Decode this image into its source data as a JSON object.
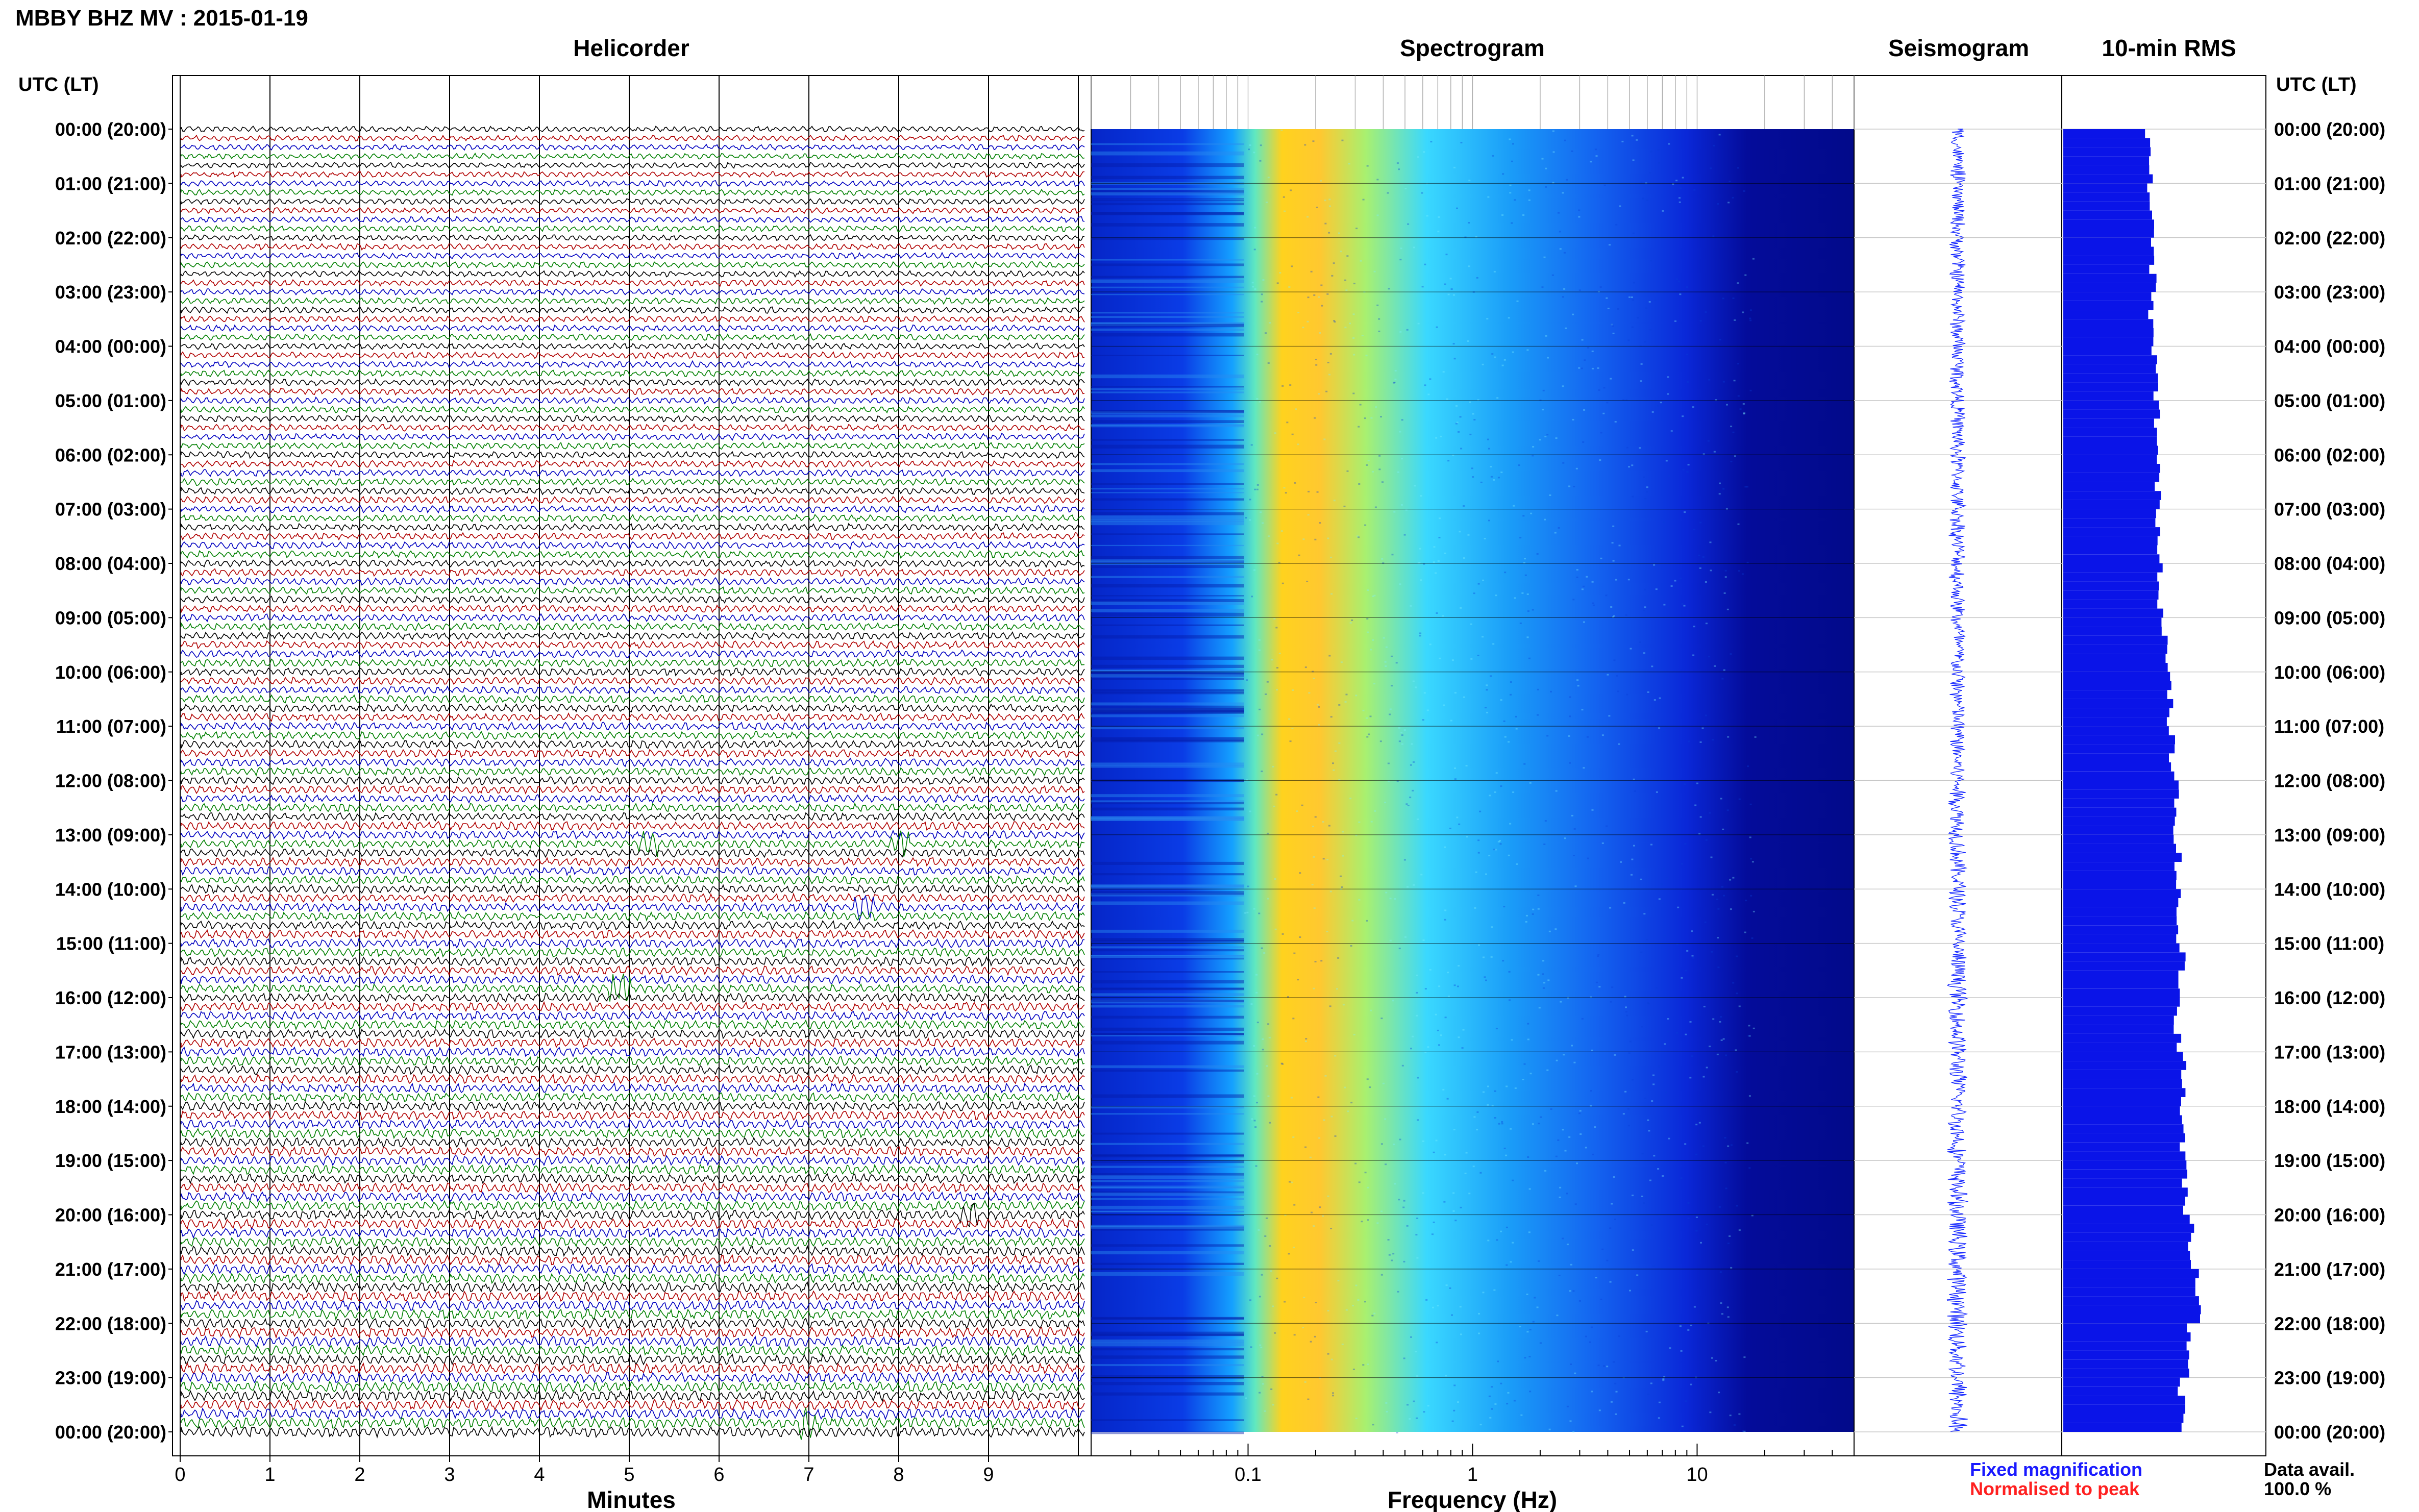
{
  "header": {
    "station_title": "MBBY BHZ MV : 2015-01-19",
    "time_axis_label": "UTC (LT)"
  },
  "panels": {
    "helicorder": "Helicorder",
    "spectrogram": "Spectrogram",
    "seismogram": "Seismogram",
    "rms": "10-min RMS"
  },
  "colors": {
    "trace_cycle": [
      "#000000",
      "#b00000",
      "#0000c0",
      "#008000"
    ],
    "rms_bar": "#0a14e8",
    "seismogram": "#1a2bff",
    "grid": "#c8c8c8",
    "fixed_magnification": "#1a1aff",
    "normalised_to_peak": "#ff2020"
  },
  "time_labels": [
    "00:00 (20:00)",
    "01:00 (21:00)",
    "02:00 (22:00)",
    "03:00 (23:00)",
    "04:00 (00:00)",
    "05:00 (01:00)",
    "06:00 (02:00)",
    "07:00 (03:00)",
    "08:00 (04:00)",
    "09:00 (05:00)",
    "10:00 (06:00)",
    "11:00 (07:00)",
    "12:00 (08:00)",
    "13:00 (09:00)",
    "14:00 (10:00)",
    "15:00 (11:00)",
    "16:00 (12:00)",
    "17:00 (13:00)",
    "18:00 (14:00)",
    "19:00 (15:00)",
    "20:00 (16:00)",
    "21:00 (17:00)",
    "22:00 (18:00)",
    "23:00 (19:00)",
    "00:00 (20:00)"
  ],
  "legend": {
    "fixed_magnification": "Fixed magnification",
    "normalised_to_peak": "Normalised to peak",
    "data_avail_label": "Data avail.",
    "data_avail_value": "100.0 %"
  },
  "chart_data": [
    {
      "type": "line",
      "name": "helicorder",
      "title": "Helicorder",
      "xlabel": "Minutes",
      "x_ticks": [
        "0",
        "1",
        "2",
        "3",
        "4",
        "5",
        "6",
        "7",
        "8",
        "9"
      ],
      "xlim": [
        0,
        10
      ],
      "rows": 144,
      "row_minutes": 10,
      "notable_events_utc_min": [
        {
          "time": "13:10",
          "minute": 5.2
        },
        {
          "time": "13:10",
          "minute": 8.0
        },
        {
          "time": "14:20",
          "minute": 7.6
        },
        {
          "time": "15:50",
          "minute": 4.9
        },
        {
          "time": "20:00",
          "minute": 8.8
        },
        {
          "time": "23:50",
          "minute": 7.0
        }
      ]
    },
    {
      "type": "heatmap",
      "name": "spectrogram",
      "title": "Spectrogram",
      "xlabel": "Frequency (Hz)",
      "x_scale": "log",
      "x_ticks": [
        "0.1",
        "1",
        "10"
      ],
      "xlim": [
        0.02,
        50
      ],
      "peak_frequency_hz": 0.22,
      "colormap": "jet"
    },
    {
      "type": "line",
      "name": "seismogram",
      "title": "Seismogram",
      "orientation": "vertical"
    },
    {
      "type": "bar",
      "name": "rms",
      "title": "10-min RMS",
      "orientation": "horizontal",
      "hourly_relative_rms": [
        0.42,
        0.43,
        0.44,
        0.43,
        0.45,
        0.46,
        0.46,
        0.47,
        0.48,
        0.5,
        0.52,
        0.53,
        0.55,
        0.56,
        0.56,
        0.58,
        0.56,
        0.59,
        0.58,
        0.6,
        0.63,
        0.66,
        0.62,
        0.58
      ]
    }
  ]
}
